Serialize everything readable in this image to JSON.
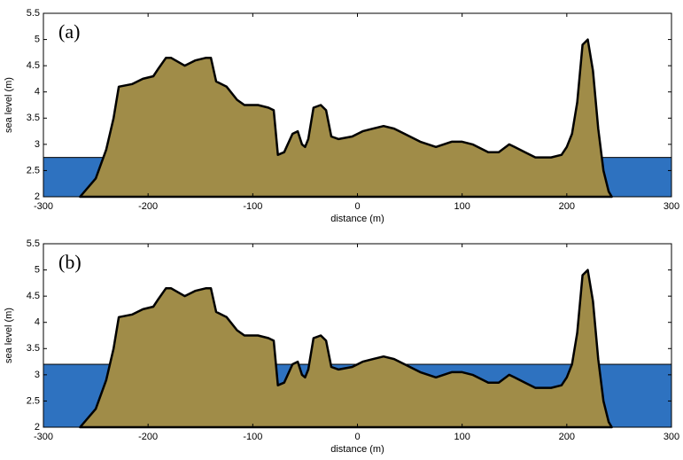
{
  "chart_data": [
    {
      "type": "area",
      "panel_label": "(a)",
      "xlabel": "distance (m)",
      "ylabel": "sea level (m)",
      "xlim": [
        -300,
        300
      ],
      "ylim": [
        2,
        5.5
      ],
      "xticks": [
        -300,
        -200,
        -100,
        0,
        100,
        200,
        300
      ],
      "yticks": [
        2,
        2.5,
        3,
        3.5,
        4,
        4.5,
        5,
        5.5
      ],
      "water_level": 2.75,
      "water_color": "#2e72c0",
      "color": "#a08c48",
      "x": [
        -265,
        -250,
        -240,
        -233,
        -228,
        -215,
        -205,
        -195,
        -190,
        -183,
        -178,
        -165,
        -155,
        -145,
        -140,
        -135,
        -125,
        -115,
        -108,
        -95,
        -85,
        -80,
        -76,
        -70,
        -62,
        -57,
        -53,
        -50,
        -47,
        -42,
        -35,
        -30,
        -25,
        -18,
        -5,
        5,
        15,
        25,
        35,
        45,
        60,
        75,
        90,
        100,
        110,
        125,
        135,
        145,
        150,
        160,
        170,
        185,
        195,
        200,
        205,
        210,
        215,
        220,
        225,
        230,
        235,
        240,
        243
      ],
      "values": [
        2.0,
        2.35,
        2.9,
        3.5,
        4.1,
        4.15,
        4.25,
        4.3,
        4.45,
        4.65,
        4.65,
        4.5,
        4.6,
        4.65,
        4.65,
        4.2,
        4.1,
        3.85,
        3.75,
        3.75,
        3.7,
        3.65,
        2.8,
        2.85,
        3.2,
        3.25,
        3.0,
        2.95,
        3.1,
        3.7,
        3.75,
        3.65,
        3.15,
        3.1,
        3.15,
        3.25,
        3.3,
        3.35,
        3.3,
        3.2,
        3.05,
        2.95,
        3.05,
        3.05,
        3.0,
        2.85,
        2.85,
        3.0,
        2.95,
        2.85,
        2.75,
        2.75,
        2.8,
        2.95,
        3.2,
        3.8,
        4.9,
        5.0,
        4.4,
        3.3,
        2.5,
        2.1,
        2.0
      ]
    },
    {
      "type": "area",
      "panel_label": "(b)",
      "xlabel": "distance (m)",
      "ylabel": "sea level (m)",
      "xlim": [
        -300,
        300
      ],
      "ylim": [
        2,
        5.5
      ],
      "xticks": [
        -300,
        -200,
        -100,
        0,
        100,
        200,
        300
      ],
      "yticks": [
        2,
        2.5,
        3,
        3.5,
        4,
        4.5,
        5,
        5.5
      ],
      "water_level": 3.2,
      "water_color": "#2e72c0",
      "color": "#a08c48",
      "x": [
        -265,
        -250,
        -240,
        -233,
        -228,
        -215,
        -205,
        -195,
        -190,
        -183,
        -178,
        -165,
        -155,
        -145,
        -140,
        -135,
        -125,
        -115,
        -108,
        -95,
        -85,
        -80,
        -76,
        -70,
        -62,
        -57,
        -53,
        -50,
        -47,
        -42,
        -35,
        -30,
        -25,
        -18,
        -5,
        5,
        15,
        25,
        35,
        45,
        60,
        75,
        90,
        100,
        110,
        125,
        135,
        145,
        150,
        160,
        170,
        185,
        195,
        200,
        205,
        210,
        215,
        220,
        225,
        230,
        235,
        240,
        243
      ],
      "values": [
        2.0,
        2.35,
        2.9,
        3.5,
        4.1,
        4.15,
        4.25,
        4.3,
        4.45,
        4.65,
        4.65,
        4.5,
        4.6,
        4.65,
        4.65,
        4.2,
        4.1,
        3.85,
        3.75,
        3.75,
        3.7,
        3.65,
        2.8,
        2.85,
        3.2,
        3.25,
        3.0,
        2.95,
        3.1,
        3.7,
        3.75,
        3.65,
        3.15,
        3.1,
        3.15,
        3.25,
        3.3,
        3.35,
        3.3,
        3.2,
        3.05,
        2.95,
        3.05,
        3.05,
        3.0,
        2.85,
        2.85,
        3.0,
        2.95,
        2.85,
        2.75,
        2.75,
        2.8,
        2.95,
        3.2,
        3.8,
        4.9,
        5.0,
        4.4,
        3.3,
        2.5,
        2.1,
        2.0
      ]
    }
  ]
}
